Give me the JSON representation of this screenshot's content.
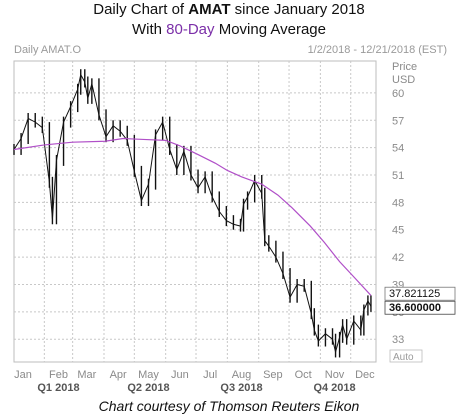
{
  "title": {
    "line1_prefix": "Daily Chart of ",
    "line1_ticker": "AMAT",
    "line1_suffix": " since January 2018",
    "line2_prefix": "With ",
    "line2_ma": "80-Day",
    "line2_suffix": " Moving Average"
  },
  "caption": "Chart courtesy of Thomson Reuters Eikon",
  "chart_data": {
    "type": "line",
    "instrument_label": "Daily AMAT.O",
    "date_range_label": "1/2/2018 - 12/21/2018 (EST)",
    "y_axis_title": [
      "Price",
      "USD"
    ],
    "y_ticks": [
      60,
      57,
      54,
      51,
      48,
      45,
      42,
      39,
      36,
      33
    ],
    "ylim": [
      30.5,
      63.5
    ],
    "auto_label": "Auto",
    "month_labels": [
      "Jan",
      "Feb",
      "Mar",
      "Apr",
      "May",
      "Jun",
      "Jul",
      "Aug",
      "Sep",
      "Oct",
      "Nov",
      "Dec"
    ],
    "quarter_labels": [
      "Q1 2018",
      "Q2 2018",
      "Q3 2018",
      "Q4 2018"
    ],
    "x_start": "2018-01-02",
    "x_end": "2018-12-21",
    "grid": true,
    "colors": {
      "price": "#111111",
      "ma": "#b04fc8",
      "grid": "#c8c8c8"
    },
    "series": [
      {
        "name": "AMAT.O",
        "style": "ohlc-bars",
        "x": [
          "2018-01-02",
          "2018-01-09",
          "2018-01-16",
          "2018-01-23",
          "2018-01-30",
          "2018-02-06",
          "2018-02-09",
          "2018-02-13",
          "2018-02-20",
          "2018-02-27",
          "2018-03-06",
          "2018-03-09",
          "2018-03-13",
          "2018-03-16",
          "2018-03-20",
          "2018-03-27",
          "2018-04-03",
          "2018-04-10",
          "2018-04-17",
          "2018-04-24",
          "2018-05-01",
          "2018-05-08",
          "2018-05-15",
          "2018-05-22",
          "2018-05-29",
          "2018-06-05",
          "2018-06-12",
          "2018-06-19",
          "2018-06-26",
          "2018-07-03",
          "2018-07-10",
          "2018-07-17",
          "2018-07-24",
          "2018-07-31",
          "2018-08-07",
          "2018-08-14",
          "2018-08-17",
          "2018-08-21",
          "2018-08-28",
          "2018-09-04",
          "2018-09-07",
          "2018-09-11",
          "2018-09-18",
          "2018-09-25",
          "2018-10-02",
          "2018-10-09",
          "2018-10-16",
          "2018-10-23",
          "2018-10-26",
          "2018-10-30",
          "2018-11-06",
          "2018-11-13",
          "2018-11-16",
          "2018-11-20",
          "2018-11-23",
          "2018-11-27",
          "2018-12-04",
          "2018-12-11",
          "2018-12-14",
          "2018-12-18",
          "2018-12-21"
        ],
        "values": [
          53.8,
          55.0,
          57.2,
          56.8,
          56.2,
          50.2,
          46.2,
          52.6,
          56.8,
          58.5,
          60.4,
          62.0,
          61.2,
          59.4,
          61.0,
          57.6,
          55.2,
          56.4,
          55.8,
          54.8,
          51.4,
          48.2,
          50.0,
          55.4,
          56.8,
          53.8,
          51.6,
          53.6,
          51.0,
          49.6,
          50.8,
          48.6,
          47.0,
          46.0,
          45.6,
          45.4,
          47.8,
          48.6,
          50.4,
          49.0,
          43.8,
          43.2,
          42.0,
          40.2,
          37.6,
          39.0,
          38.8,
          35.8,
          34.0,
          32.8,
          33.6,
          33.0,
          31.6,
          33.2,
          34.6,
          33.0,
          35.0,
          34.0,
          36.2,
          37.2,
          36.6
        ]
      },
      {
        "name": "80-Day MA",
        "style": "line",
        "x": [
          "2018-01-02",
          "2018-02-01",
          "2018-03-01",
          "2018-04-02",
          "2018-04-20",
          "2018-05-10",
          "2018-06-01",
          "2018-06-15",
          "2018-07-02",
          "2018-07-20",
          "2018-08-01",
          "2018-08-15",
          "2018-09-04",
          "2018-09-20",
          "2018-10-04",
          "2018-10-22",
          "2018-11-05",
          "2018-11-20",
          "2018-12-06",
          "2018-12-21"
        ],
        "values": [
          53.8,
          54.3,
          54.6,
          54.7,
          55.0,
          54.9,
          54.8,
          54.2,
          53.3,
          52.3,
          51.5,
          50.8,
          50.0,
          48.8,
          47.4,
          45.4,
          43.6,
          41.5,
          39.6,
          37.8
        ]
      }
    ],
    "last_price_labels": [
      {
        "text": "37.821125",
        "series": "80-Day MA",
        "value": 37.821125
      },
      {
        "text": "36.600000",
        "series": "AMAT.O",
        "value": 36.6
      }
    ]
  }
}
